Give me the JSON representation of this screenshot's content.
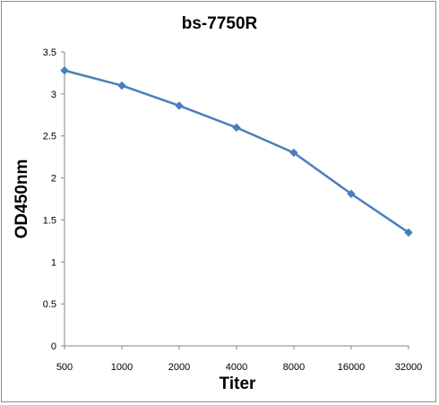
{
  "chart_data": {
    "type": "line",
    "title": "bs-7750R",
    "xlabel": "Titer",
    "ylabel": "OD450nm",
    "categories": [
      "500",
      "1000",
      "2000",
      "4000",
      "8000",
      "16000",
      "32000"
    ],
    "series": [
      {
        "values": [
          3.28,
          3.1,
          2.86,
          2.6,
          2.3,
          1.81,
          1.35
        ]
      }
    ],
    "ylim": [
      0,
      3.5
    ],
    "yticks": [
      "0",
      "0.5",
      "1",
      "1.5",
      "2",
      "2.5",
      "3",
      "3.5"
    ],
    "grid": false,
    "legend": "none",
    "colors": {
      "series": "#4a7ebb",
      "axis": "#868686"
    }
  }
}
